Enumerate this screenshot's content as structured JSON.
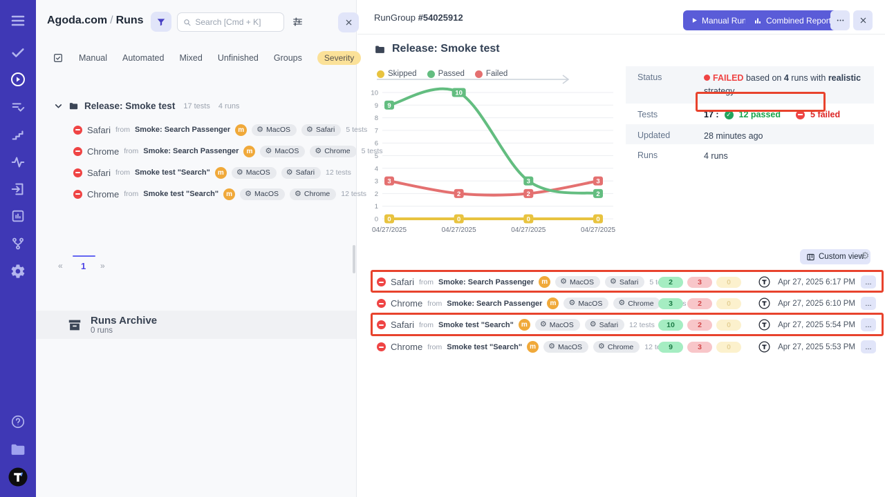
{
  "sidebar": {
    "icons": [
      "menu",
      "check",
      "play-circle",
      "list-check",
      "stairs",
      "activity",
      "sign-in",
      "report",
      "branch",
      "gear",
      "help",
      "folder",
      "logo"
    ]
  },
  "left_panel": {
    "breadcrumb": {
      "project": "Agoda.com",
      "separator": "/",
      "page": "Runs"
    },
    "search": {
      "placeholder": "Search [Cmd + K]"
    },
    "tabs": [
      "Manual",
      "Automated",
      "Mixed",
      "Unfinished",
      "Groups"
    ],
    "severity_tab": "Severity",
    "group": {
      "name": "Release: Smoke test",
      "tests": "17 tests",
      "runs": "4 runs"
    },
    "runs": [
      {
        "name": "Safari",
        "from": "from",
        "source": "Smoke: Search Passenger",
        "badge": "m",
        "env": [
          "MacOS",
          "Safari"
        ],
        "tests": "5 tests"
      },
      {
        "name": "Chrome",
        "from": "from",
        "source": "Smoke: Search Passenger",
        "badge": "m",
        "env": [
          "MacOS",
          "Chrome"
        ],
        "tests": "5 tests"
      },
      {
        "name": "Safari",
        "from": "from",
        "source": "Smoke test \"Search\"",
        "badge": "m",
        "env": [
          "MacOS",
          "Safari"
        ],
        "tests": "12 tests"
      },
      {
        "name": "Chrome",
        "from": "from",
        "source": "Smoke test \"Search\"",
        "badge": "m",
        "env": [
          "MacOS",
          "Chrome"
        ],
        "tests": "12 tests"
      }
    ],
    "pagination": {
      "prev": "«",
      "page": "1",
      "next": "»"
    },
    "archive": {
      "title": "Runs Archive",
      "subtitle": "0 runs"
    }
  },
  "right_panel": {
    "header": {
      "rungroup_label": "RunGroup",
      "rungroup_id": "#54025912",
      "manual_run": "Manual Run",
      "combined_report": "Combined Report",
      "more": "...",
      "close": "✕"
    },
    "title": "Release: Smoke test",
    "details": {
      "status_label": "Status",
      "status_failed": "FAILED",
      "status_text_1": "based on",
      "status_runs": "4",
      "status_text_2": "runs with",
      "status_strategy": "realistic",
      "status_text_3": "strategy",
      "tests_label": "Tests",
      "tests_total": "17 :",
      "tests_passed": "12 passed",
      "tests_failed": "5 failed",
      "updated_label": "Updated",
      "updated_value": "28 minutes ago",
      "runs_label": "Runs",
      "runs_value": "4 runs"
    },
    "custom_view": "Custom view",
    "table_rows": [
      {
        "name": "Safari",
        "from": "from",
        "source": "Smoke: Search Passenger",
        "badge": "m",
        "env": [
          "MacOS",
          "Safari"
        ],
        "tests": "5 tests",
        "passed": "2",
        "failed": "3",
        "skipped": "0",
        "date": "Apr 27, 2025 6:17 PM",
        "highlighted": true
      },
      {
        "name": "Chrome",
        "from": "from",
        "source": "Smoke: Search Passenger",
        "badge": "m",
        "env": [
          "MacOS",
          "Chrome"
        ],
        "tests": "5 tests",
        "passed": "3",
        "failed": "2",
        "skipped": "0",
        "date": "Apr 27, 2025 6:10 PM",
        "highlighted": false
      },
      {
        "name": "Safari",
        "from": "from",
        "source": "Smoke test \"Search\"",
        "badge": "m",
        "env": [
          "MacOS",
          "Safari"
        ],
        "tests": "12 tests",
        "passed": "10",
        "failed": "2",
        "skipped": "0",
        "date": "Apr 27, 2025 5:54 PM",
        "highlighted": true
      },
      {
        "name": "Chrome",
        "from": "from",
        "source": "Smoke test \"Search\"",
        "badge": "m",
        "env": [
          "MacOS",
          "Chrome"
        ],
        "tests": "12 tests",
        "passed": "9",
        "failed": "3",
        "skipped": "0",
        "date": "Apr 27, 2025 5:53 PM",
        "highlighted": false
      }
    ]
  },
  "chart_data": {
    "type": "line",
    "x": [
      "04/27/2025",
      "04/27/2025",
      "04/27/2025",
      "04/27/2025"
    ],
    "series": [
      {
        "name": "Skipped",
        "color": "#e8c33f",
        "values": [
          0,
          0,
          0,
          0
        ]
      },
      {
        "name": "Passed",
        "color": "#63bd80",
        "values": [
          9,
          10,
          3,
          2
        ]
      },
      {
        "name": "Failed",
        "color": "#e47070",
        "values": [
          3,
          2,
          2,
          3
        ]
      }
    ],
    "ylim": [
      0,
      10
    ],
    "yticks": [
      0,
      1,
      2,
      3,
      4,
      5,
      6,
      7,
      8,
      9,
      10
    ],
    "grid": true,
    "legend_position": "top-left"
  },
  "colors": {
    "sidebar": "#3f38b5",
    "accent_indigo": "#5a5cd8",
    "annotation_red": "#e8432d",
    "failed_red": "#ef4444",
    "passed_green": "#16a34a",
    "severity_yellow": "#fbe198"
  }
}
